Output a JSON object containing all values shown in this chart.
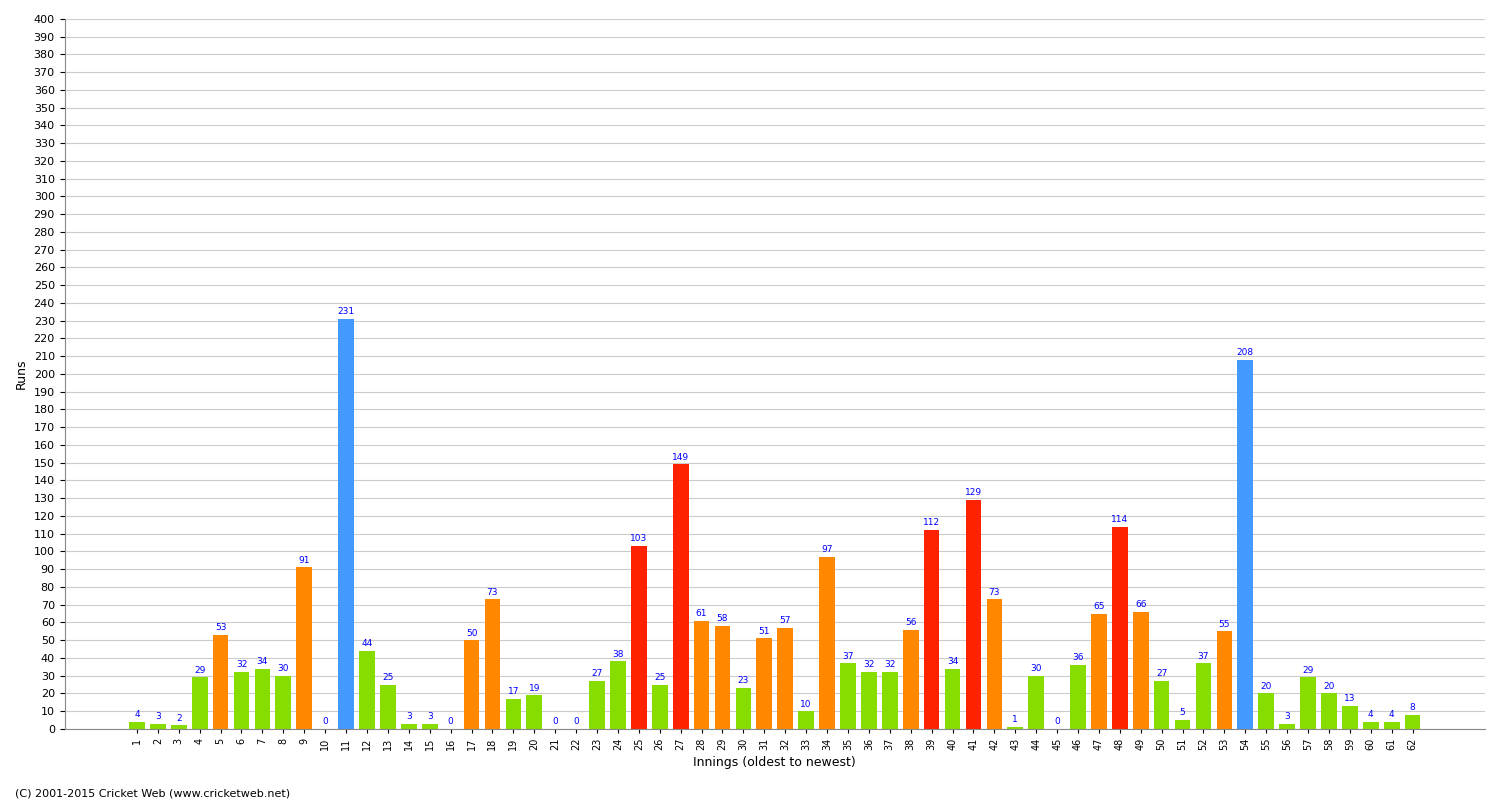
{
  "xlabel": "Innings (oldest to newest)",
  "ylabel": "Runs",
  "background_color": "#ffffff",
  "grid_color": "#cccccc",
  "innings": [
    1,
    2,
    3,
    4,
    5,
    6,
    7,
    8,
    9,
    10,
    11,
    12,
    13,
    14,
    15,
    16,
    17,
    18,
    19,
    20,
    21,
    22,
    23,
    24,
    25,
    26,
    27,
    28,
    29,
    30,
    31,
    32,
    33,
    34,
    35,
    36,
    37,
    38,
    39,
    40,
    41,
    42,
    43,
    44,
    45,
    46,
    47,
    48,
    49,
    50,
    51,
    52,
    53,
    54,
    55,
    56,
    57,
    58,
    59,
    60,
    61,
    62
  ],
  "scores": [
    4,
    3,
    2,
    29,
    53,
    32,
    34,
    30,
    91,
    0,
    231,
    44,
    25,
    3,
    3,
    0,
    50,
    73,
    17,
    19,
    0,
    0,
    27,
    38,
    103,
    25,
    149,
    61,
    58,
    23,
    51,
    57,
    10,
    97,
    37,
    32,
    32,
    56,
    112,
    34,
    129,
    73,
    1,
    30,
    0,
    36,
    65,
    114,
    66,
    27,
    5,
    37,
    55,
    208,
    20,
    3,
    29,
    20,
    13,
    4,
    4,
    8
  ],
  "colors": [
    "green",
    "green",
    "green",
    "green",
    "orange",
    "green",
    "green",
    "green",
    "orange",
    "green",
    "blue",
    "green",
    "green",
    "green",
    "green",
    "green",
    "orange",
    "orange",
    "green",
    "green",
    "green",
    "green",
    "green",
    "green",
    "red",
    "green",
    "red",
    "orange",
    "orange",
    "green",
    "orange",
    "orange",
    "green",
    "orange",
    "green",
    "green",
    "green",
    "orange",
    "red",
    "green",
    "red",
    "orange",
    "green",
    "green",
    "green",
    "green",
    "orange",
    "red",
    "orange",
    "green",
    "green",
    "green",
    "orange",
    "blue",
    "green",
    "green",
    "green",
    "green",
    "green",
    "green",
    "green",
    "green"
  ],
  "color_map": {
    "green": "#88dd00",
    "orange": "#ff8800",
    "red": "#ff2200",
    "blue": "#4499ff"
  },
  "ylim": [
    0,
    400
  ],
  "yticks": [
    0,
    10,
    20,
    30,
    40,
    50,
    60,
    70,
    80,
    90,
    100,
    110,
    120,
    130,
    140,
    150,
    160,
    170,
    180,
    190,
    200,
    210,
    220,
    230,
    240,
    250,
    260,
    270,
    280,
    290,
    300,
    310,
    320,
    330,
    340,
    350,
    360,
    370,
    380,
    390,
    400
  ],
  "label_fontsize": 7,
  "bar_width": 0.75,
  "footer": "(C) 2001-2015 Cricket Web (www.cricketweb.net)"
}
